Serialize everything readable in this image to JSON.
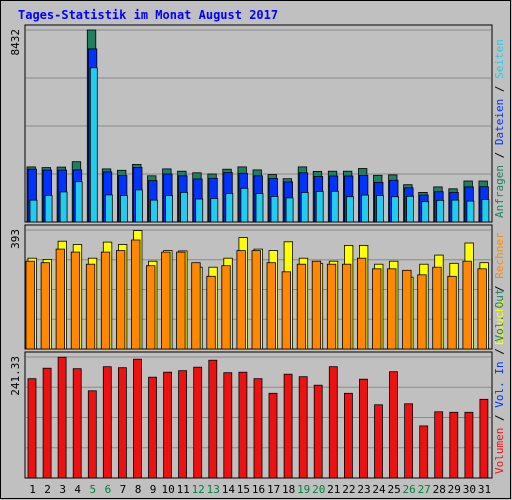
{
  "chart_data": {
    "type": "bar",
    "title": "Tages-Statistik im Monat August 2017",
    "categories": [
      "1",
      "2",
      "3",
      "4",
      "5",
      "6",
      "7",
      "8",
      "9",
      "10",
      "11",
      "12",
      "13",
      "14",
      "15",
      "16",
      "17",
      "18",
      "19",
      "20",
      "21",
      "22",
      "23",
      "24",
      "25",
      "26",
      "27",
      "28",
      "29",
      "30",
      "31"
    ],
    "weekend_days": [
      "5",
      "6",
      "12",
      "13",
      "19",
      "20",
      "26",
      "27"
    ],
    "colors": {
      "title": "#0000ff",
      "weekday_label": "#000000",
      "weekend_label": "#007f40",
      "panel_bg": "#c0c0c0",
      "border": "#000000",
      "grid": "#8a8a8a",
      "anfragen": "#1f7f5f",
      "dateien": "#0033ff",
      "seiten": "#22ccee",
      "besuche": "#ffff00",
      "rechner": "#ff8800",
      "volumen": "#ee1111"
    },
    "panels": [
      {
        "name": "anfragen-dateien-seiten",
        "max_label": "8432",
        "ymax": 8432,
        "legend": [
          {
            "text": "Anfragen",
            "color": "#1f7f5f"
          },
          {
            "text": "Dateien",
            "color": "#0033ff"
          },
          {
            "text": "Seiten",
            "color": "#22ccee"
          }
        ],
        "series": [
          {
            "name": "Anfragen",
            "color": "#1f7f5f",
            "values": [
              2420,
              2390,
              2410,
              2650,
              8432,
              2330,
              2270,
              2530,
              2030,
              2330,
              2230,
              2160,
              2110,
              2320,
              2420,
              2290,
              2080,
              1900,
              2420,
              2220,
              2230,
              2230,
              2350,
              2050,
              2070,
              1640,
              1300,
              1540,
              1460,
              1800,
              1800
            ]
          },
          {
            "name": "Dateien",
            "color": "#0033ff",
            "values": [
              2320,
              2280,
              2280,
              2290,
              7600,
              2200,
              2040,
              2400,
              1820,
              2110,
              2030,
              1890,
              1920,
              2170,
              2140,
              2030,
              1910,
              1760,
              2160,
              2000,
              2020,
              2020,
              2040,
              1740,
              1830,
              1500,
              1180,
              1330,
              1300,
              1540,
              1550
            ]
          },
          {
            "name": "Seiten",
            "color": "#22ccee",
            "values": [
              960,
              1170,
              1320,
              1770,
              6770,
              1190,
              1160,
              1410,
              960,
              1160,
              1300,
              1010,
              1030,
              1250,
              1480,
              1250,
              1120,
              1060,
              1300,
              1340,
              1350,
              1110,
              1180,
              1160,
              1110,
              1130,
              890,
              950,
              960,
              920,
              990
            ]
          }
        ]
      },
      {
        "name": "besuche-rechner",
        "max_label": "393",
        "ymax": 393,
        "legend": [
          {
            "text": "Besuche",
            "color": "#ffff00"
          },
          {
            "text": "Rechner",
            "color": "#ff8800"
          }
        ],
        "series": [
          {
            "name": "Besuche",
            "color": "#ffff00",
            "values": [
              300,
              296,
              356,
              345,
              300,
              353,
              345,
              391,
              290,
              325,
              324,
              270,
              270,
              300,
              368,
              330,
              325,
              354,
              300,
              282,
              290,
              342,
              342,
              280,
              290,
              237,
              280,
              310,
              283,
              350,
              285
            ]
          },
          {
            "name": "Rechner",
            "color": "#ff8800",
            "values": [
              290,
              285,
              330,
              320,
              280,
              320,
              325,
              360,
              275,
              320,
              320,
              285,
              240,
              275,
              325,
              325,
              285,
              255,
              280,
              290,
              280,
              280,
              300,
              265,
              265,
              260,
              245,
              270,
              240,
              290,
              265
            ]
          }
        ]
      },
      {
        "name": "volumen",
        "max_label": "241.33",
        "ymax": 241.33,
        "legend": [
          {
            "text": "Volumen",
            "color": "#ee1111"
          },
          {
            "text": "Vol. In",
            "color": "#0033ff"
          },
          {
            "text": "Vol. Out",
            "color": "#1f7f5f"
          }
        ],
        "series": [
          {
            "name": "Volumen",
            "color": "#ee1111",
            "values": [
              198,
              219,
              241,
              218,
              174,
              222,
              220,
              237,
              201,
              211,
              214,
              221,
              235,
              210,
              211,
              198,
              169,
              207,
              202,
              185,
              222,
              169,
              197,
              146,
              212,
              148,
              104,
              132,
              131,
              131,
              157
            ]
          }
        ]
      }
    ]
  }
}
